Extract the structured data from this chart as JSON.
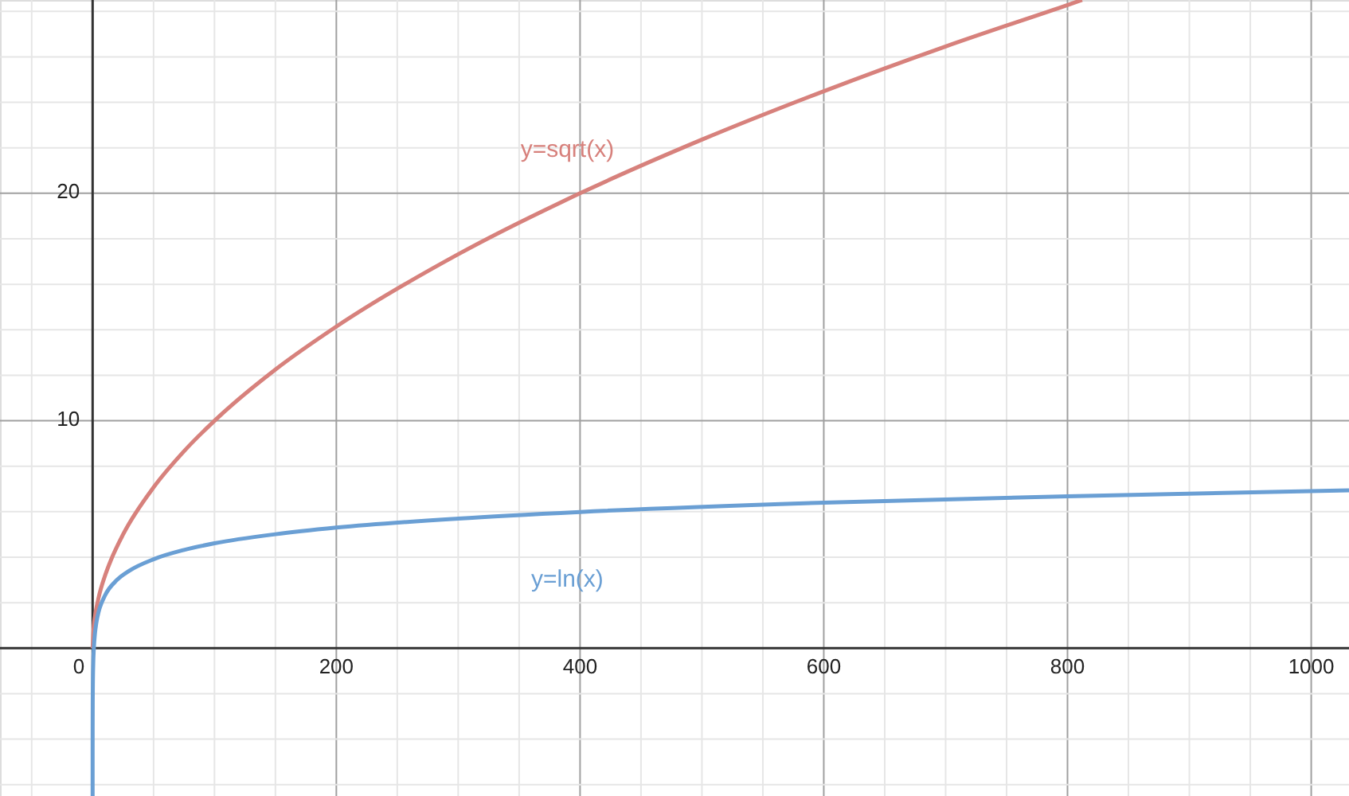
{
  "chart_data": {
    "type": "line",
    "xlim": [
      -76,
      1031
    ],
    "ylim": [
      -6.5,
      28.5
    ],
    "xticks": [
      {
        "value": -50,
        "label": null
      },
      {
        "value": 0,
        "label": "0"
      },
      {
        "value": 50,
        "label": null
      },
      {
        "value": 100,
        "label": null
      },
      {
        "value": 150,
        "label": null
      },
      {
        "value": 200,
        "label": "200"
      },
      {
        "value": 250,
        "label": null
      },
      {
        "value": 300,
        "label": null
      },
      {
        "value": 350,
        "label": null
      },
      {
        "value": 400,
        "label": "400"
      },
      {
        "value": 450,
        "label": null
      },
      {
        "value": 500,
        "label": null
      },
      {
        "value": 550,
        "label": null
      },
      {
        "value": 600,
        "label": "600"
      },
      {
        "value": 650,
        "label": null
      },
      {
        "value": 700,
        "label": null
      },
      {
        "value": 750,
        "label": null
      },
      {
        "value": 800,
        "label": "800"
      },
      {
        "value": 850,
        "label": null
      },
      {
        "value": 900,
        "label": null
      },
      {
        "value": 950,
        "label": null
      },
      {
        "value": 1000,
        "label": "1000"
      }
    ],
    "yticks": [
      {
        "value": -6,
        "label": null
      },
      {
        "value": -4,
        "label": null
      },
      {
        "value": -2,
        "label": null
      },
      {
        "value": 0,
        "label": null
      },
      {
        "value": 2,
        "label": null
      },
      {
        "value": 4,
        "label": null
      },
      {
        "value": 6,
        "label": null
      },
      {
        "value": 8,
        "label": null
      },
      {
        "value": 10,
        "label": "10"
      },
      {
        "value": 12,
        "label": null
      },
      {
        "value": 14,
        "label": null
      },
      {
        "value": 16,
        "label": null
      },
      {
        "value": 18,
        "label": null
      },
      {
        "value": 20,
        "label": "20"
      },
      {
        "value": 22,
        "label": null
      },
      {
        "value": 24,
        "label": null
      },
      {
        "value": 26,
        "label": null
      },
      {
        "value": 28,
        "label": null
      }
    ],
    "grid": true,
    "marker": "none",
    "line_style": "solid",
    "series": [
      {
        "name": "y=sqrt(x)",
        "color": "#d7817c",
        "x": [
          0,
          1,
          2,
          5,
          10,
          15,
          25,
          50,
          75,
          100,
          150,
          200,
          300,
          400,
          500,
          600,
          700,
          800,
          812
        ],
        "values": [
          0,
          1,
          1.41,
          2.24,
          3.16,
          3.87,
          5,
          7.07,
          8.66,
          10,
          12.25,
          14.14,
          17.32,
          20,
          22.36,
          24.49,
          26.46,
          28.28,
          28.5
        ]
      },
      {
        "name": "y=ln(x)",
        "color": "#6a9fd4",
        "x": [
          0.0015,
          0.01,
          0.03,
          0.1,
          0.2,
          0.5,
          1,
          2,
          3,
          5,
          10,
          20,
          30,
          50,
          75,
          100,
          150,
          200,
          300,
          400,
          600,
          800,
          1031
        ],
        "values": [
          -6.5,
          -4.6,
          -3.51,
          -2.3,
          -1.61,
          -0.69,
          0,
          0.69,
          1.1,
          1.61,
          2.3,
          3,
          3.4,
          3.91,
          4.32,
          4.61,
          5.01,
          5.3,
          5.7,
          5.99,
          6.4,
          6.68,
          6.94
        ]
      }
    ]
  }
}
